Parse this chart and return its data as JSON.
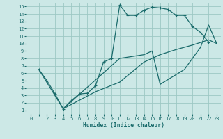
{
  "xlabel": "Humidex (Indice chaleur)",
  "bg_color": "#cce8e6",
  "grid_color": "#9dc8c4",
  "line_color": "#1a6b6b",
  "xlim": [
    -0.5,
    23.5
  ],
  "ylim": [
    0.5,
    15.5
  ],
  "xticks": [
    0,
    1,
    2,
    3,
    4,
    5,
    6,
    7,
    8,
    9,
    10,
    11,
    12,
    13,
    14,
    15,
    16,
    17,
    18,
    19,
    20,
    21,
    22,
    23
  ],
  "yticks": [
    1,
    2,
    3,
    4,
    5,
    6,
    7,
    8,
    9,
    10,
    11,
    12,
    13,
    14,
    15
  ],
  "curve1_x": [
    1,
    2,
    3,
    4,
    5,
    6,
    7,
    8,
    9,
    10,
    11,
    12,
    13,
    14,
    15,
    16,
    17,
    18,
    19,
    20,
    21,
    22
  ],
  "curve1_y": [
    6.5,
    5.0,
    3.2,
    1.2,
    2.3,
    3.2,
    3.3,
    4.3,
    7.5,
    8.0,
    15.2,
    13.8,
    13.8,
    14.5,
    14.9,
    14.8,
    14.6,
    13.8,
    13.8,
    12.3,
    11.5,
    10.2
  ],
  "curve2_x": [
    1,
    4,
    11,
    14,
    15,
    16,
    19,
    20,
    21,
    22,
    23
  ],
  "curve2_y": [
    6.5,
    1.2,
    8.0,
    8.5,
    9.0,
    4.5,
    6.5,
    8.0,
    9.5,
    12.5,
    10.0
  ],
  "curve3_x": [
    4,
    8,
    11,
    14,
    16,
    18,
    20,
    22,
    23
  ],
  "curve3_y": [
    1.2,
    3.5,
    4.8,
    7.5,
    8.5,
    9.2,
    9.8,
    10.5,
    10.0
  ]
}
